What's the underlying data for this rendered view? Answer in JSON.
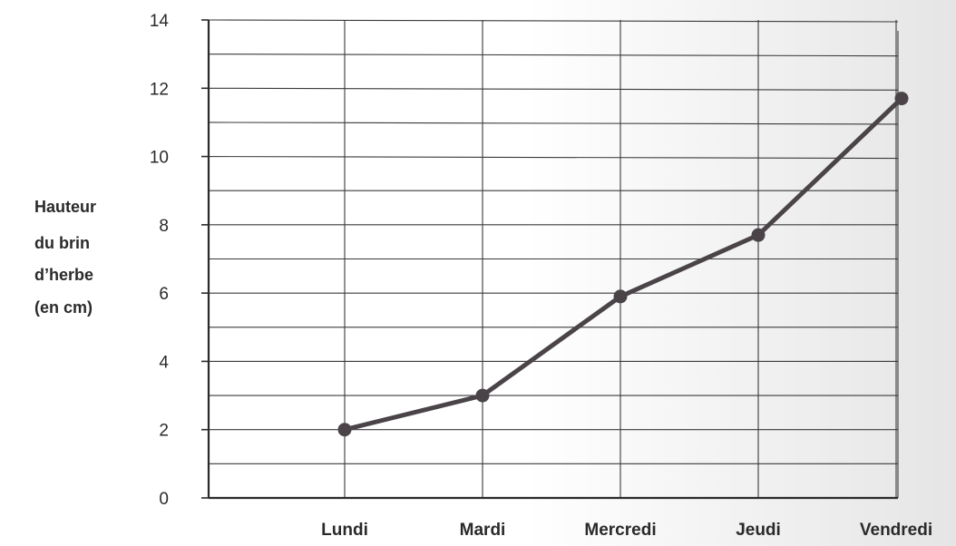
{
  "chart_data": {
    "type": "line",
    "categories": [
      "Lundi",
      "Mardi",
      "Mercredi",
      "Jeudi",
      "Vendredi"
    ],
    "values": [
      2,
      3,
      5.9,
      7.7,
      11.7
    ],
    "ylabel_lines": [
      "Hauteur",
      "du brin",
      "d’herbe",
      "(en cm)"
    ],
    "xlabel": "",
    "ylim": [
      0,
      14
    ],
    "yticks": [
      0,
      2,
      4,
      6,
      8,
      10,
      12,
      14
    ],
    "minor_step": 1,
    "grid": true,
    "line_color": "#4a4448",
    "marker_color": "#4a4448",
    "grid_color": "#3a3a3a",
    "background_shade": "#e9e8e8"
  }
}
